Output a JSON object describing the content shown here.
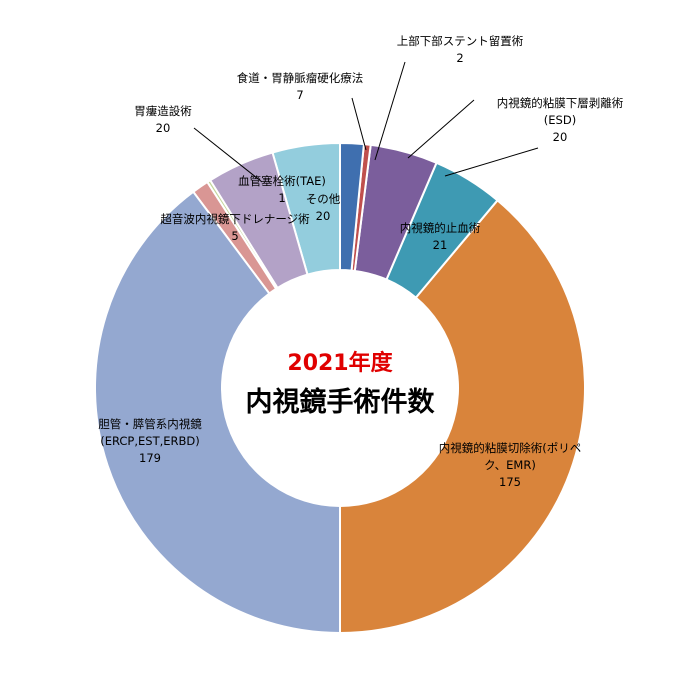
{
  "chart_data": {
    "type": "donut",
    "title": "2021年度",
    "subtitle": "内視鏡手術件数",
    "categories": [
      "食道・胃静脈瘤硬化療法",
      "上部下部ステント留置術",
      "内視鏡的粘膜下層剥離術(ESD)",
      "内視鏡的止血術",
      "内視鏡的粘膜切除術(ポリペク、EMR)",
      "胆管・膵管系内視鏡(ERCP,EST,ERBD)",
      "超音波内視鏡下ドレナージ術",
      "血管塞栓術(TAE)",
      "胃瘻造設術",
      "その他"
    ],
    "values": [
      7,
      2,
      20,
      21,
      175,
      179,
      5,
      1,
      20,
      20
    ],
    "colors": [
      "#3f6faf",
      "#c0504d",
      "#7b5e9c",
      "#3e9ab3",
      "#d9843b",
      "#94a8d0",
      "#d99694",
      "#c3d69b",
      "#b3a2c7",
      "#93cddd"
    ]
  }
}
